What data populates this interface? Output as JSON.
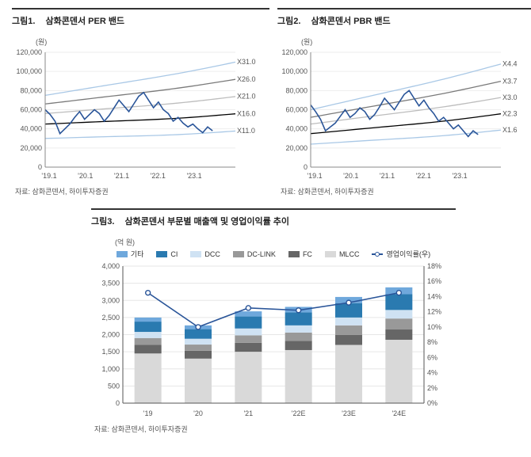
{
  "chart1": {
    "title_idx": "그림1.",
    "title": "삼화콘덴서 PER 밴드",
    "y_unit": "(원)",
    "y_ticks": [
      0,
      20000,
      40000,
      60000,
      80000,
      100000,
      120000
    ],
    "x_ticks": [
      "'19.1",
      "'20.1",
      "'21.1",
      "'22.1",
      "'23.1"
    ],
    "bands": [
      {
        "label": "X31.0",
        "color": "#a9c8e6",
        "end_y": 110000,
        "start_y": 75000
      },
      {
        "label": "X26.0",
        "color": "#7a7a7a",
        "end_y": 92000,
        "start_y": 66000
      },
      {
        "label": "X21.0",
        "color": "#bdbdbd",
        "end_y": 74000,
        "start_y": 56000
      },
      {
        "label": "X16.0",
        "color": "#000000",
        "end_y": 56000,
        "start_y": 45000
      },
      {
        "label": "X11.0",
        "color": "#a9c8e6",
        "end_y": 38000,
        "start_y": 30000
      }
    ],
    "price": {
      "color": "#2a5599",
      "points": [
        60000,
        55000,
        48000,
        35000,
        40000,
        45000,
        52000,
        58000,
        50000,
        55000,
        60000,
        56000,
        48000,
        54000,
        62000,
        70000,
        64000,
        58000,
        66000,
        74000,
        78000,
        70000,
        62000,
        68000,
        60000,
        56000,
        48000,
        52000,
        46000,
        42000,
        45000,
        40000,
        36000,
        42000,
        38000
      ]
    },
    "source": "자료: 삼화콘덴서, 하이투자증권"
  },
  "chart2": {
    "title_idx": "그림2.",
    "title": "삼화콘덴서 PBR 밴드",
    "y_unit": "(원)",
    "y_ticks": [
      0,
      20000,
      40000,
      60000,
      80000,
      100000,
      120000
    ],
    "x_ticks": [
      "'19.1",
      "'20.1",
      "'21.1",
      "'22.1",
      "'23.1"
    ],
    "bands": [
      {
        "label": "X4.4",
        "color": "#a9c8e6",
        "end_y": 108000,
        "start_y": 60000
      },
      {
        "label": "X3.7",
        "color": "#7a7a7a",
        "end_y": 90000,
        "start_y": 52000
      },
      {
        "label": "X3.0",
        "color": "#bdbdbd",
        "end_y": 73000,
        "start_y": 45000
      },
      {
        "label": "X2.3",
        "color": "#000000",
        "end_y": 56000,
        "start_y": 35000
      },
      {
        "label": "X1.6",
        "color": "#a9c8e6",
        "end_y": 39000,
        "start_y": 24000
      }
    ],
    "price": {
      "color": "#2a5599",
      "points": [
        65000,
        58000,
        50000,
        38000,
        42000,
        46000,
        53000,
        60000,
        52000,
        56000,
        62000,
        58000,
        50000,
        55000,
        63000,
        72000,
        66000,
        60000,
        68000,
        76000,
        80000,
        72000,
        64000,
        70000,
        62000,
        56000,
        48000,
        52000,
        46000,
        40000,
        44000,
        38000,
        32000,
        38000,
        34000
      ]
    },
    "source": "자료: 삼화콘덴서, 하이투자증권"
  },
  "chart3": {
    "title_idx": "그림3.",
    "title": "삼화콘덴서 부문별 매출액 및 영업이익률 추이",
    "y_unit_left": "(억 원)",
    "y_ticks_left": [
      0,
      500,
      1000,
      1500,
      2000,
      2500,
      3000,
      3500,
      4000
    ],
    "y_ticks_right": [
      "0%",
      "2%",
      "4%",
      "6%",
      "8%",
      "10%",
      "12%",
      "14%",
      "16%",
      "18%"
    ],
    "x_labels": [
      "'19",
      "'20",
      "'21",
      "'22E",
      "'23E",
      "'24E"
    ],
    "legend": [
      {
        "label": "기타",
        "color": "#6fa8dc"
      },
      {
        "label": "CI",
        "color": "#2a7ab0"
      },
      {
        "label": "DCC",
        "color": "#cfe2f3"
      },
      {
        "label": "DC-LINK",
        "color": "#999999"
      },
      {
        "label": "FC",
        "color": "#666666"
      },
      {
        "label": "MLCC",
        "color": "#d9d9d9"
      },
      {
        "label": "영업이익률(우)",
        "color": "#2a5599",
        "type": "line"
      }
    ],
    "series": {
      "MLCC": [
        1450,
        1300,
        1500,
        1550,
        1700,
        1850
      ],
      "FC": [
        250,
        230,
        260,
        270,
        290,
        300
      ],
      "DC-LINK": [
        200,
        180,
        220,
        240,
        280,
        320
      ],
      "DCC": [
        180,
        170,
        200,
        210,
        230,
        250
      ],
      "CI": [
        300,
        280,
        350,
        380,
        420,
        460
      ],
      "기타": [
        120,
        110,
        150,
        160,
        180,
        200
      ]
    },
    "op_margin": [
      14.5,
      10.0,
      12.5,
      12.2,
      13.2,
      14.5
    ],
    "right_max": 18,
    "left_max": 4000,
    "colors": {
      "MLCC": "#d9d9d9",
      "FC": "#666666",
      "DC-LINK": "#999999",
      "DCC": "#cfe2f3",
      "CI": "#2a7ab0",
      "기타": "#6fa8dc",
      "line": "#2a5599",
      "grid": "#e6e6e6",
      "axis": "#555555"
    },
    "source": "자료: 삼화콘덴서, 하이투자증권"
  }
}
